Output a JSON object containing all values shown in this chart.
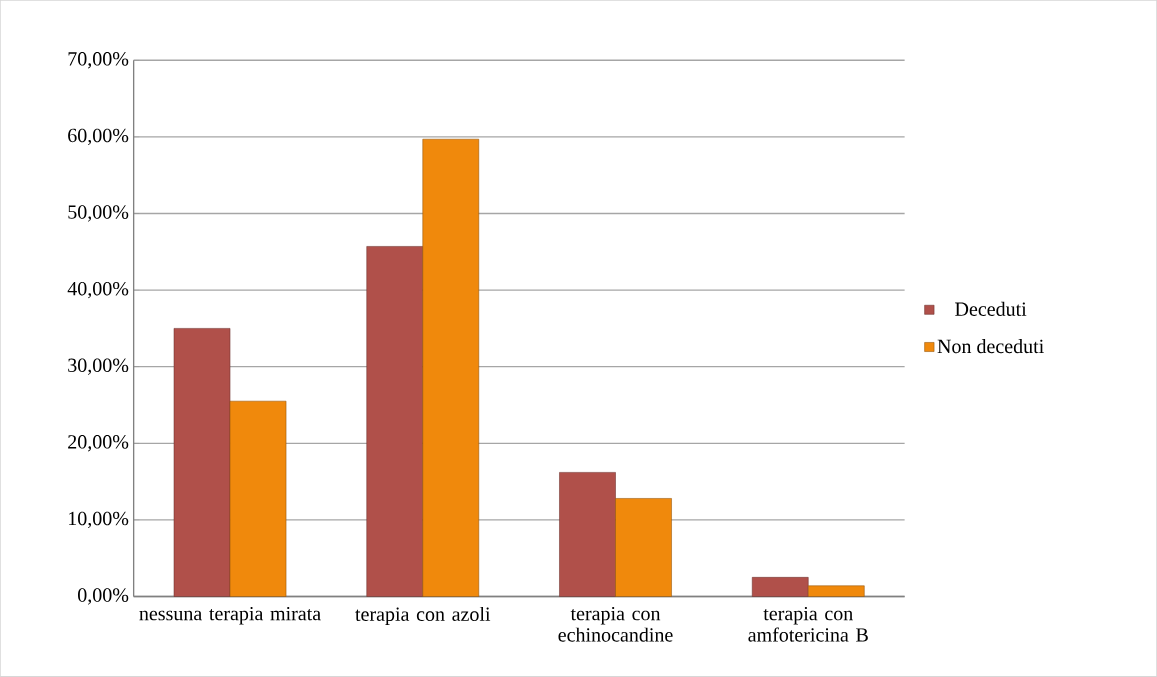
{
  "chart_data": {
    "type": "bar",
    "categories": [
      "nessuna terapia mirata",
      "terapia con azoli",
      "terapia con echinocandine",
      "terapia con amfotericina B"
    ],
    "series": [
      {
        "name": "Deceduti",
        "color": "#b0504a",
        "values": [
          35.0,
          45.7,
          16.2,
          2.5
        ]
      },
      {
        "name": "Non deceduti",
        "color": "#f0890c",
        "values": [
          25.5,
          59.7,
          12.8,
          1.4
        ]
      }
    ],
    "ylim": [
      0,
      70
    ],
    "yticks": [
      {
        "value": 0,
        "label": "0,00%"
      },
      {
        "value": 10,
        "label": "10,00%"
      },
      {
        "value": 20,
        "label": "20,00%"
      },
      {
        "value": 30,
        "label": "30,00%"
      },
      {
        "value": 40,
        "label": "40,00%"
      },
      {
        "value": 50,
        "label": "50,00%"
      },
      {
        "value": 60,
        "label": "60,00%"
      },
      {
        "value": 70,
        "label": "70,00%"
      }
    ],
    "grid": "y",
    "legend": "right"
  }
}
